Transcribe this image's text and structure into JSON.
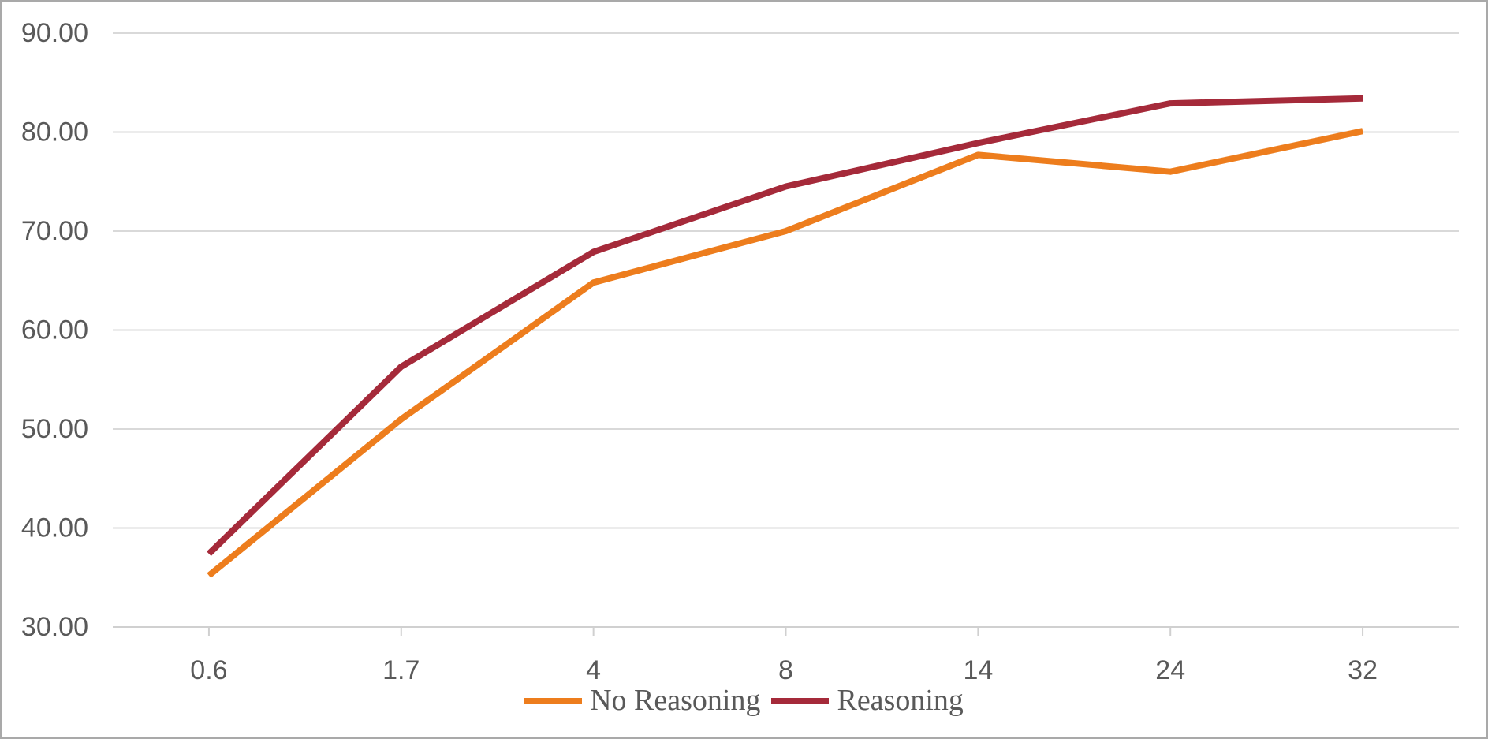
{
  "chart_data": {
    "type": "line",
    "title": "",
    "xlabel": "",
    "ylabel": "",
    "x_categories": [
      "0.6",
      "1.7",
      "4",
      "8",
      "14",
      "24",
      "32"
    ],
    "series": [
      {
        "name": "No Reasoning",
        "color": "#ED7D1D",
        "values": [
          35.2,
          51.0,
          64.8,
          70.0,
          77.7,
          76.0,
          80.1
        ]
      },
      {
        "name": "Reasoning",
        "color": "#A52A3A",
        "values": [
          37.4,
          56.3,
          67.9,
          74.5,
          78.9,
          82.9,
          83.4
        ]
      }
    ],
    "y_tick_labels": [
      "90.00",
      "80.00",
      "70.00",
      "60.00",
      "50.00",
      "40.00",
      "30.00"
    ],
    "ylim": [
      30,
      90
    ],
    "grid": "horizontal",
    "legend_position": "bottom",
    "line_width": 8
  },
  "styles": {
    "grid_color": "#d9d9d9",
    "axis_line_color": "#d0d0d0",
    "tick_color": "#d0d0d0",
    "label_color": "#595959",
    "frame_border_color": "#a9a9a9",
    "background_color": "#ffffff"
  }
}
